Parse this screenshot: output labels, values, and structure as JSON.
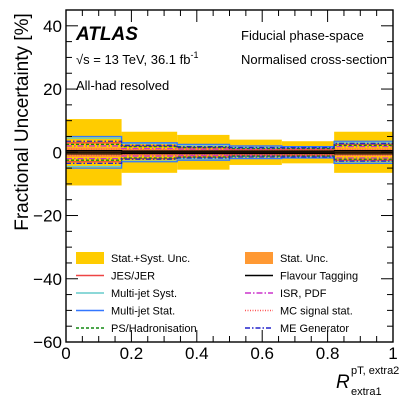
{
  "chart_data": {
    "type": "bar",
    "experiment": "ATLAS",
    "energy_line": "√s = 13 TeV, 36.1 fb",
    "lumi_sup": "-1",
    "channel": "All-had resolved",
    "phase_space": "Fiducial phase-space",
    "normalisation": "Normalised cross-section",
    "ylabel": "Fractional Uncertainty [%]",
    "xlabel_main": "R",
    "xlabel_sup": "pT, extra2",
    "xlabel_sub": "extra1",
    "xlim": [
      0,
      1
    ],
    "ylim": [
      -60,
      45
    ],
    "x_ticks": [
      0,
      0.2,
      0.4,
      0.6,
      0.8,
      1
    ],
    "x_tick_labels": [
      "0",
      "0.2",
      "0.4",
      "0.6",
      "0.8",
      "1"
    ],
    "y_ticks": [
      -60,
      -40,
      -20,
      0,
      20,
      40
    ],
    "y_tick_labels": [
      "−60",
      "−40",
      "−20",
      "0",
      "20",
      "40"
    ],
    "bin_edges": [
      0,
      0.17,
      0.34,
      0.5,
      0.66,
      0.82,
      1
    ],
    "series": [
      {
        "name": "Stat.+Syst. Unc.",
        "legend_type": "box",
        "color": "#ffcc00",
        "values": [
          10.5,
          6.5,
          5.5,
          4.0,
          3.5,
          6.5
        ]
      },
      {
        "name": "Stat. Unc.",
        "legend_type": "box",
        "color": "#ff9933",
        "values": [
          1.5,
          1.0,
          1.0,
          1.0,
          1.0,
          1.2
        ]
      },
      {
        "name": "JES/JER",
        "legend_type": "line",
        "color": "#ee4444",
        "dash": "",
        "values": [
          3.0,
          2.0,
          1.5,
          1.0,
          1.0,
          2.5
        ]
      },
      {
        "name": "Flavour Tagging",
        "legend_type": "line",
        "color": "#000000",
        "dash": "",
        "values": [
          0.5,
          0.4,
          0.4,
          0.4,
          0.4,
          0.5
        ]
      },
      {
        "name": "Multi-jet Syst.",
        "legend_type": "line",
        "color": "#66cccc",
        "dash": "",
        "values": [
          4.5,
          2.8,
          2.0,
          1.5,
          1.5,
          3.0
        ]
      },
      {
        "name": "ISR, PDF",
        "legend_type": "line",
        "color": "#cc33cc",
        "dash": "6,2,1.5,2",
        "values": [
          2.0,
          1.2,
          1.0,
          1.0,
          1.2,
          1.8
        ]
      },
      {
        "name": "Multi-jet Stat.",
        "legend_type": "line",
        "color": "#3377ff",
        "dash": "",
        "values": [
          5.0,
          3.0,
          2.5,
          2.0,
          1.8,
          3.5
        ]
      },
      {
        "name": "MC signal stat.",
        "legend_type": "line",
        "color": "#ff5555",
        "dash": "1,1.5",
        "values": [
          1.0,
          0.8,
          0.8,
          0.8,
          0.8,
          1.0
        ]
      },
      {
        "name": "PS/Hadronisation",
        "legend_type": "line",
        "color": "#118811",
        "dash": "3,2",
        "values": [
          2.5,
          1.8,
          1.5,
          1.2,
          1.2,
          2.2
        ]
      },
      {
        "name": "ME Generator",
        "legend_type": "line",
        "color": "#2222cc",
        "dash": "5,2,1.5,2",
        "values": [
          3.5,
          2.2,
          1.8,
          1.5,
          1.5,
          2.8
        ]
      }
    ]
  }
}
